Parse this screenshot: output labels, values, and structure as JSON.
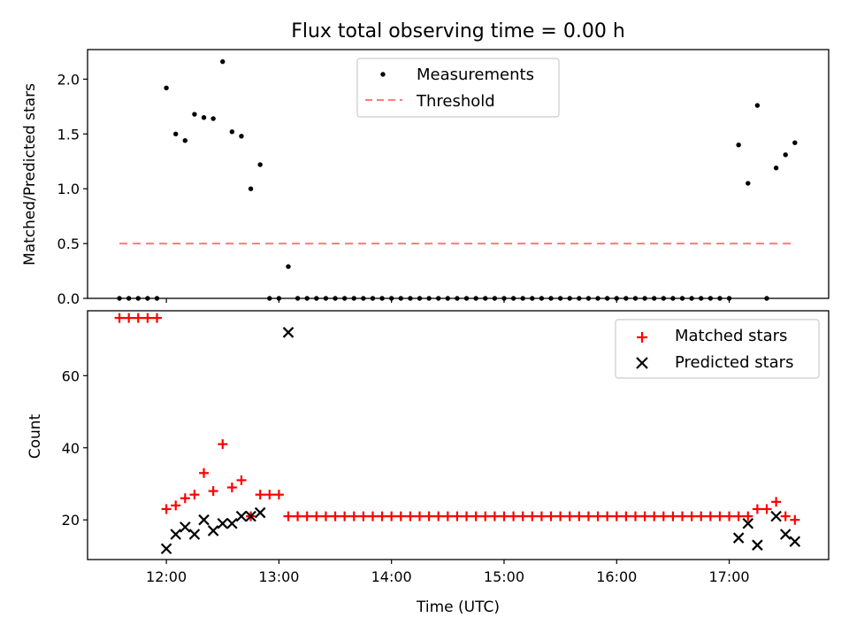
{
  "chart_data": [
    {
      "type": "scatter",
      "title": "Flux total observing time = 0.00 h",
      "xlabel": "",
      "ylabel": "Matched/Predicted stars",
      "xlim": [
        "11:18",
        "17:53"
      ],
      "ylim": [
        0,
        2.27
      ],
      "yticks": [
        0.0,
        0.5,
        1.0,
        1.5,
        2.0
      ],
      "ytick_labels": [
        "0.0",
        "0.5",
        "1.0",
        "1.5",
        "2.0"
      ],
      "legend": {
        "placement": "top-center",
        "entries": [
          "Measurements",
          "Threshold"
        ]
      },
      "series": [
        {
          "name": "Measurements",
          "marker": "dot",
          "color": "#000000",
          "points": [
            [
              "11:35",
              0
            ],
            [
              "11:40",
              0
            ],
            [
              "11:45",
              0
            ],
            [
              "11:50",
              0
            ],
            [
              "11:55",
              0
            ],
            [
              "12:00",
              1.92
            ],
            [
              "12:05",
              1.5
            ],
            [
              "12:10",
              1.44
            ],
            [
              "12:15",
              1.68
            ],
            [
              "12:20",
              1.65
            ],
            [
              "12:25",
              1.64
            ],
            [
              "12:30",
              2.16
            ],
            [
              "12:35",
              1.52
            ],
            [
              "12:40",
              1.48
            ],
            [
              "12:45",
              1.0
            ],
            [
              "12:50",
              1.22
            ],
            [
              "12:55",
              0
            ],
            [
              "13:00",
              0
            ],
            [
              "13:05",
              0.29
            ],
            [
              "13:10",
              0
            ],
            [
              "13:15",
              0
            ],
            [
              "13:20",
              0
            ],
            [
              "13:25",
              0
            ],
            [
              "13:30",
              0
            ],
            [
              "13:35",
              0
            ],
            [
              "13:40",
              0
            ],
            [
              "13:45",
              0
            ],
            [
              "13:50",
              0
            ],
            [
              "13:55",
              0
            ],
            [
              "14:00",
              0
            ],
            [
              "14:05",
              0
            ],
            [
              "14:10",
              0
            ],
            [
              "14:15",
              0
            ],
            [
              "14:20",
              0
            ],
            [
              "14:25",
              0
            ],
            [
              "14:30",
              0
            ],
            [
              "14:35",
              0
            ],
            [
              "14:40",
              0
            ],
            [
              "14:45",
              0
            ],
            [
              "14:50",
              0
            ],
            [
              "14:55",
              0
            ],
            [
              "15:00",
              0
            ],
            [
              "15:05",
              0
            ],
            [
              "15:10",
              0
            ],
            [
              "15:15",
              0
            ],
            [
              "15:20",
              0
            ],
            [
              "15:25",
              0
            ],
            [
              "15:30",
              0
            ],
            [
              "15:35",
              0
            ],
            [
              "15:40",
              0
            ],
            [
              "15:45",
              0
            ],
            [
              "15:50",
              0
            ],
            [
              "15:55",
              0
            ],
            [
              "16:00",
              0
            ],
            [
              "16:05",
              0
            ],
            [
              "16:10",
              0
            ],
            [
              "16:15",
              0
            ],
            [
              "16:20",
              0
            ],
            [
              "16:25",
              0
            ],
            [
              "16:30",
              0
            ],
            [
              "16:35",
              0
            ],
            [
              "16:40",
              0
            ],
            [
              "16:45",
              0
            ],
            [
              "16:50",
              0
            ],
            [
              "16:55",
              0
            ],
            [
              "17:00",
              0
            ],
            [
              "17:05",
              1.4
            ],
            [
              "17:10",
              1.05
            ],
            [
              "17:15",
              1.76
            ],
            [
              "17:20",
              0
            ],
            [
              "17:25",
              1.19
            ],
            [
              "17:30",
              1.31
            ],
            [
              "17:35",
              1.42
            ]
          ]
        },
        {
          "name": "Threshold",
          "style": "dashed-line",
          "color": "#ff7b7b",
          "x": [
            "11:35",
            "17:35"
          ],
          "y": [
            0.5,
            0.5
          ]
        }
      ]
    },
    {
      "type": "scatter",
      "title": "",
      "xlabel": "Time (UTC)",
      "ylabel": "Count",
      "xlim": [
        "11:18",
        "17:53"
      ],
      "ylim": [
        9,
        78
      ],
      "yticks": [
        20,
        40,
        60
      ],
      "ytick_labels": [
        "20",
        "40",
        "60"
      ],
      "xticks": [
        "12:00",
        "13:00",
        "14:00",
        "15:00",
        "16:00",
        "17:00"
      ],
      "xtick_labels": [
        "12:00",
        "13:00",
        "14:00",
        "15:00",
        "16:00",
        "17:00"
      ],
      "legend": {
        "placement": "top-right",
        "entries": [
          "Matched stars",
          "Predicted stars"
        ]
      },
      "series": [
        {
          "name": "Matched stars",
          "marker": "plus",
          "color": "#ff0000",
          "points": [
            [
              "11:35",
              76
            ],
            [
              "11:40",
              76
            ],
            [
              "11:45",
              76
            ],
            [
              "11:50",
              76
            ],
            [
              "11:55",
              76
            ],
            [
              "12:00",
              23
            ],
            [
              "12:05",
              24
            ],
            [
              "12:10",
              26
            ],
            [
              "12:15",
              27
            ],
            [
              "12:20",
              33
            ],
            [
              "12:25",
              28
            ],
            [
              "12:30",
              41
            ],
            [
              "12:35",
              29
            ],
            [
              "12:40",
              31
            ],
            [
              "12:45",
              21
            ],
            [
              "12:50",
              27
            ],
            [
              "12:55",
              27
            ],
            [
              "13:00",
              27
            ],
            [
              "13:05",
              21
            ],
            [
              "13:10",
              21
            ],
            [
              "13:15",
              21
            ],
            [
              "13:20",
              21
            ],
            [
              "13:25",
              21
            ],
            [
              "13:30",
              21
            ],
            [
              "13:35",
              21
            ],
            [
              "13:40",
              21
            ],
            [
              "13:45",
              21
            ],
            [
              "13:50",
              21
            ],
            [
              "13:55",
              21
            ],
            [
              "14:00",
              21
            ],
            [
              "14:05",
              21
            ],
            [
              "14:10",
              21
            ],
            [
              "14:15",
              21
            ],
            [
              "14:20",
              21
            ],
            [
              "14:25",
              21
            ],
            [
              "14:30",
              21
            ],
            [
              "14:35",
              21
            ],
            [
              "14:40",
              21
            ],
            [
              "14:45",
              21
            ],
            [
              "14:50",
              21
            ],
            [
              "14:55",
              21
            ],
            [
              "15:00",
              21
            ],
            [
              "15:05",
              21
            ],
            [
              "15:10",
              21
            ],
            [
              "15:15",
              21
            ],
            [
              "15:20",
              21
            ],
            [
              "15:25",
              21
            ],
            [
              "15:30",
              21
            ],
            [
              "15:35",
              21
            ],
            [
              "15:40",
              21
            ],
            [
              "15:45",
              21
            ],
            [
              "15:50",
              21
            ],
            [
              "15:55",
              21
            ],
            [
              "16:00",
              21
            ],
            [
              "16:05",
              21
            ],
            [
              "16:10",
              21
            ],
            [
              "16:15",
              21
            ],
            [
              "16:20",
              21
            ],
            [
              "16:25",
              21
            ],
            [
              "16:30",
              21
            ],
            [
              "16:35",
              21
            ],
            [
              "16:40",
              21
            ],
            [
              "16:45",
              21
            ],
            [
              "16:50",
              21
            ],
            [
              "16:55",
              21
            ],
            [
              "17:00",
              21
            ],
            [
              "17:05",
              21
            ],
            [
              "17:10",
              21
            ],
            [
              "17:15",
              23
            ],
            [
              "17:20",
              23
            ],
            [
              "17:25",
              25
            ],
            [
              "17:30",
              21
            ],
            [
              "17:35",
              20
            ]
          ]
        },
        {
          "name": "Predicted stars",
          "marker": "x",
          "color": "#000000",
          "points": [
            [
              "12:00",
              12
            ],
            [
              "12:05",
              16
            ],
            [
              "12:10",
              18
            ],
            [
              "12:15",
              16
            ],
            [
              "12:20",
              20
            ],
            [
              "12:25",
              17
            ],
            [
              "12:30",
              19
            ],
            [
              "12:35",
              19
            ],
            [
              "12:40",
              21
            ],
            [
              "12:45",
              21
            ],
            [
              "12:50",
              22
            ],
            [
              "13:05",
              72
            ],
            [
              "17:05",
              15
            ],
            [
              "17:10",
              19
            ],
            [
              "17:15",
              13
            ],
            [
              "17:25",
              21
            ],
            [
              "17:30",
              16
            ],
            [
              "17:35",
              14
            ]
          ]
        }
      ]
    }
  ]
}
